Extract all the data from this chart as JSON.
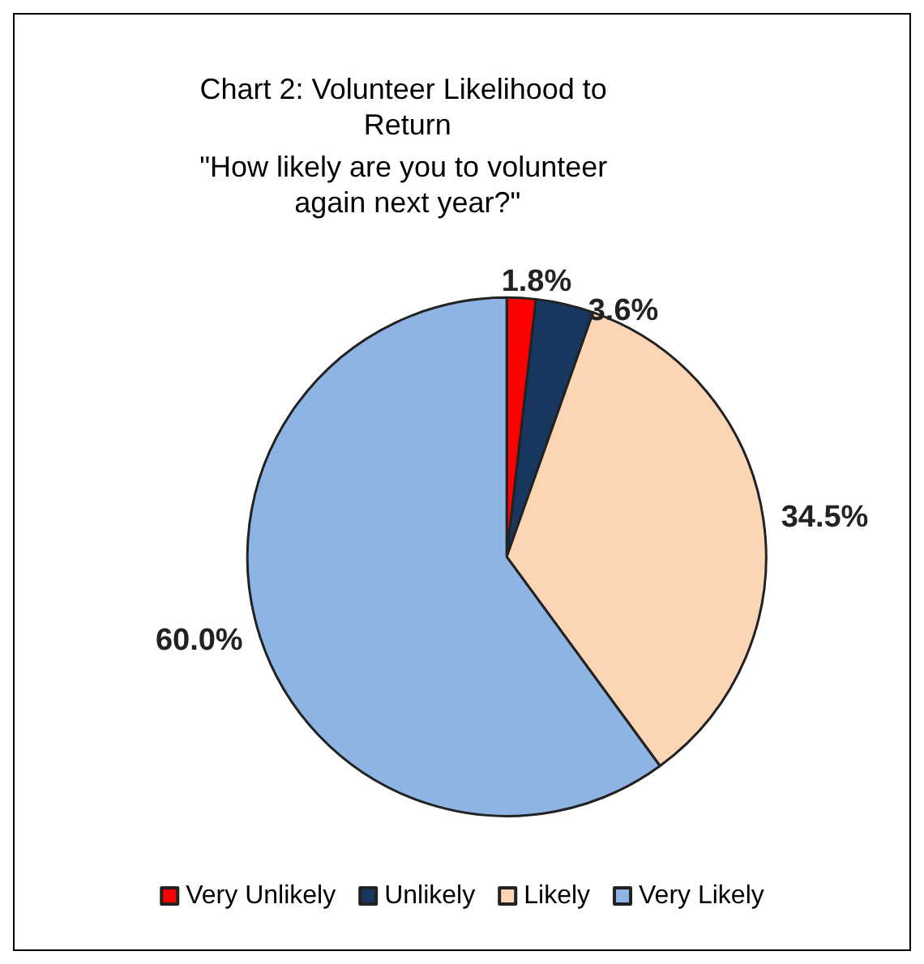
{
  "chart_data": {
    "type": "pie",
    "title": "Chart 2: Volunteer Likelihood to Return",
    "subtitle": "\"How likely are you to volunteer again next year?\"",
    "categories": [
      "Very Unlikely",
      "Unlikely",
      "Likely",
      "Very Likely"
    ],
    "values": [
      1.8,
      3.6,
      34.5,
      60.0
    ],
    "colors": [
      "#ff0000",
      "#17375e",
      "#fcd5b5",
      "#8db4e2"
    ],
    "value_labels": [
      "1.8%",
      "3.6%",
      "34.5%",
      "60.0%"
    ],
    "legend": "bottom"
  }
}
